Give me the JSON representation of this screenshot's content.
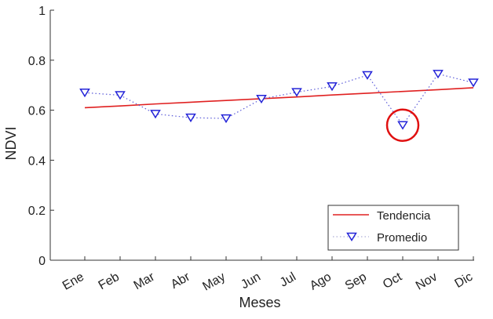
{
  "chart_data": {
    "type": "line",
    "xlabel": "Meses",
    "ylabel": "NDVI",
    "categories": [
      "Ene",
      "Feb",
      "Mar",
      "Abr",
      "May",
      "Jun",
      "Jul",
      "Ago",
      "Sep",
      "Oct",
      "Nov",
      "Dic"
    ],
    "ylim": [
      0,
      1
    ],
    "yticks": [
      "0",
      "0.2",
      "0.4",
      "0.6",
      "0.8",
      "1"
    ],
    "series": [
      {
        "name": "Tendencia",
        "style": "solid-line",
        "color": "#e02020",
        "values": [
          0.61,
          0.617,
          0.625,
          0.632,
          0.639,
          0.646,
          0.653,
          0.661,
          0.668,
          0.675,
          0.682,
          0.69
        ]
      },
      {
        "name": "Promedio",
        "style": "dotted-line-triangle-markers",
        "color": "#2424d8",
        "values": [
          0.67,
          0.66,
          0.585,
          0.57,
          0.567,
          0.645,
          0.672,
          0.695,
          0.74,
          0.54,
          0.745,
          0.71
        ]
      }
    ],
    "highlight": {
      "category": "Oct",
      "series": "Promedio",
      "shape": "circle",
      "color": "#e01010"
    },
    "legend_position": "bottom-right",
    "grid": false
  }
}
